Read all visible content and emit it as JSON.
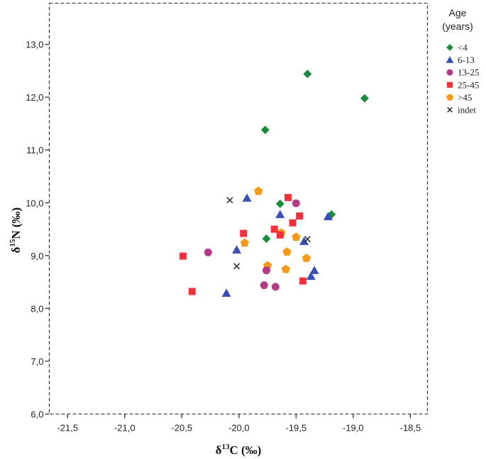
{
  "chart_data": {
    "type": "scatter",
    "title": "",
    "xlabel": "δ13C (‰)",
    "ylabel": "δ15N (‰)",
    "xlabel_parts": {
      "delta": "δ",
      "sup": "13",
      "rest": "C (‰)"
    },
    "ylabel_parts": {
      "delta": "δ",
      "sup": "15",
      "rest": "N (‰)"
    },
    "xlim": [
      -21.66,
      -18.35
    ],
    "ylim": [
      6.0,
      13.78
    ],
    "x_ticks": [
      -21.5,
      -21.0,
      -20.5,
      -20.0,
      -19.5,
      -19.0,
      -18.5
    ],
    "x_tick_labels": [
      "-21,5",
      "-21,0",
      "-20,5",
      "-20,0",
      "-19,5",
      "-19,0",
      "-18,5"
    ],
    "y_ticks": [
      6.0,
      7.0,
      8.0,
      9.0,
      10.0,
      11.0,
      12.0,
      13.0
    ],
    "y_tick_labels": [
      "6,0",
      "7,0",
      "8,0",
      "9,0",
      "10,0",
      "11,0",
      "12,0",
      "13,0"
    ],
    "grid": false,
    "frame": "dashed",
    "legend_position": "right",
    "legend_title": [
      "Age",
      "(years)"
    ],
    "series": [
      {
        "name": "<4",
        "marker": "diamond",
        "color": "#1b8c3e",
        "points": [
          [
            -19.4,
            12.44
          ],
          [
            -18.9,
            11.98
          ],
          [
            -19.77,
            11.38
          ],
          [
            -19.64,
            9.98
          ],
          [
            -19.76,
            9.32
          ],
          [
            -19.19,
            9.78
          ]
        ]
      },
      {
        "name": "6-13",
        "marker": "triangle",
        "color": "#3a4fb4",
        "points": [
          [
            -19.93,
            10.09
          ],
          [
            -19.64,
            9.78
          ],
          [
            -19.22,
            9.74
          ],
          [
            -19.43,
            9.27
          ],
          [
            -20.02,
            9.11
          ],
          [
            -19.34,
            8.72
          ],
          [
            -19.37,
            8.61
          ],
          [
            -20.11,
            8.29
          ]
        ]
      },
      {
        "name": "13-25",
        "marker": "circle",
        "color": "#b23b87",
        "points": [
          [
            -19.5,
            9.99
          ],
          [
            -20.27,
            9.06
          ],
          [
            -19.76,
            8.72
          ],
          [
            -19.78,
            8.44
          ],
          [
            -19.68,
            8.41
          ]
        ]
      },
      {
        "name": "25-45",
        "marker": "square",
        "color": "#f2303b",
        "points": [
          [
            -19.57,
            10.1
          ],
          [
            -19.47,
            9.75
          ],
          [
            -19.53,
            9.62
          ],
          [
            -19.69,
            9.5
          ],
          [
            -19.96,
            9.42
          ],
          [
            -19.64,
            9.39
          ],
          [
            -20.49,
            8.99
          ],
          [
            -19.44,
            8.52
          ],
          [
            -20.41,
            8.32
          ]
        ]
      },
      {
        "name": ">45",
        "marker": "pentagon",
        "color": "#f79a1c",
        "points": [
          [
            -19.83,
            10.22
          ],
          [
            -19.63,
            9.43
          ],
          [
            -19.5,
            9.35
          ],
          [
            -19.95,
            9.24
          ],
          [
            -19.58,
            9.07
          ],
          [
            -19.41,
            8.95
          ],
          [
            -19.75,
            8.81
          ],
          [
            -19.59,
            8.74
          ]
        ]
      },
      {
        "name": "indet",
        "marker": "x",
        "color": "#333333",
        "points": [
          [
            -20.08,
            10.05
          ],
          [
            -19.4,
            9.31
          ],
          [
            -20.02,
            8.8
          ]
        ]
      }
    ]
  }
}
